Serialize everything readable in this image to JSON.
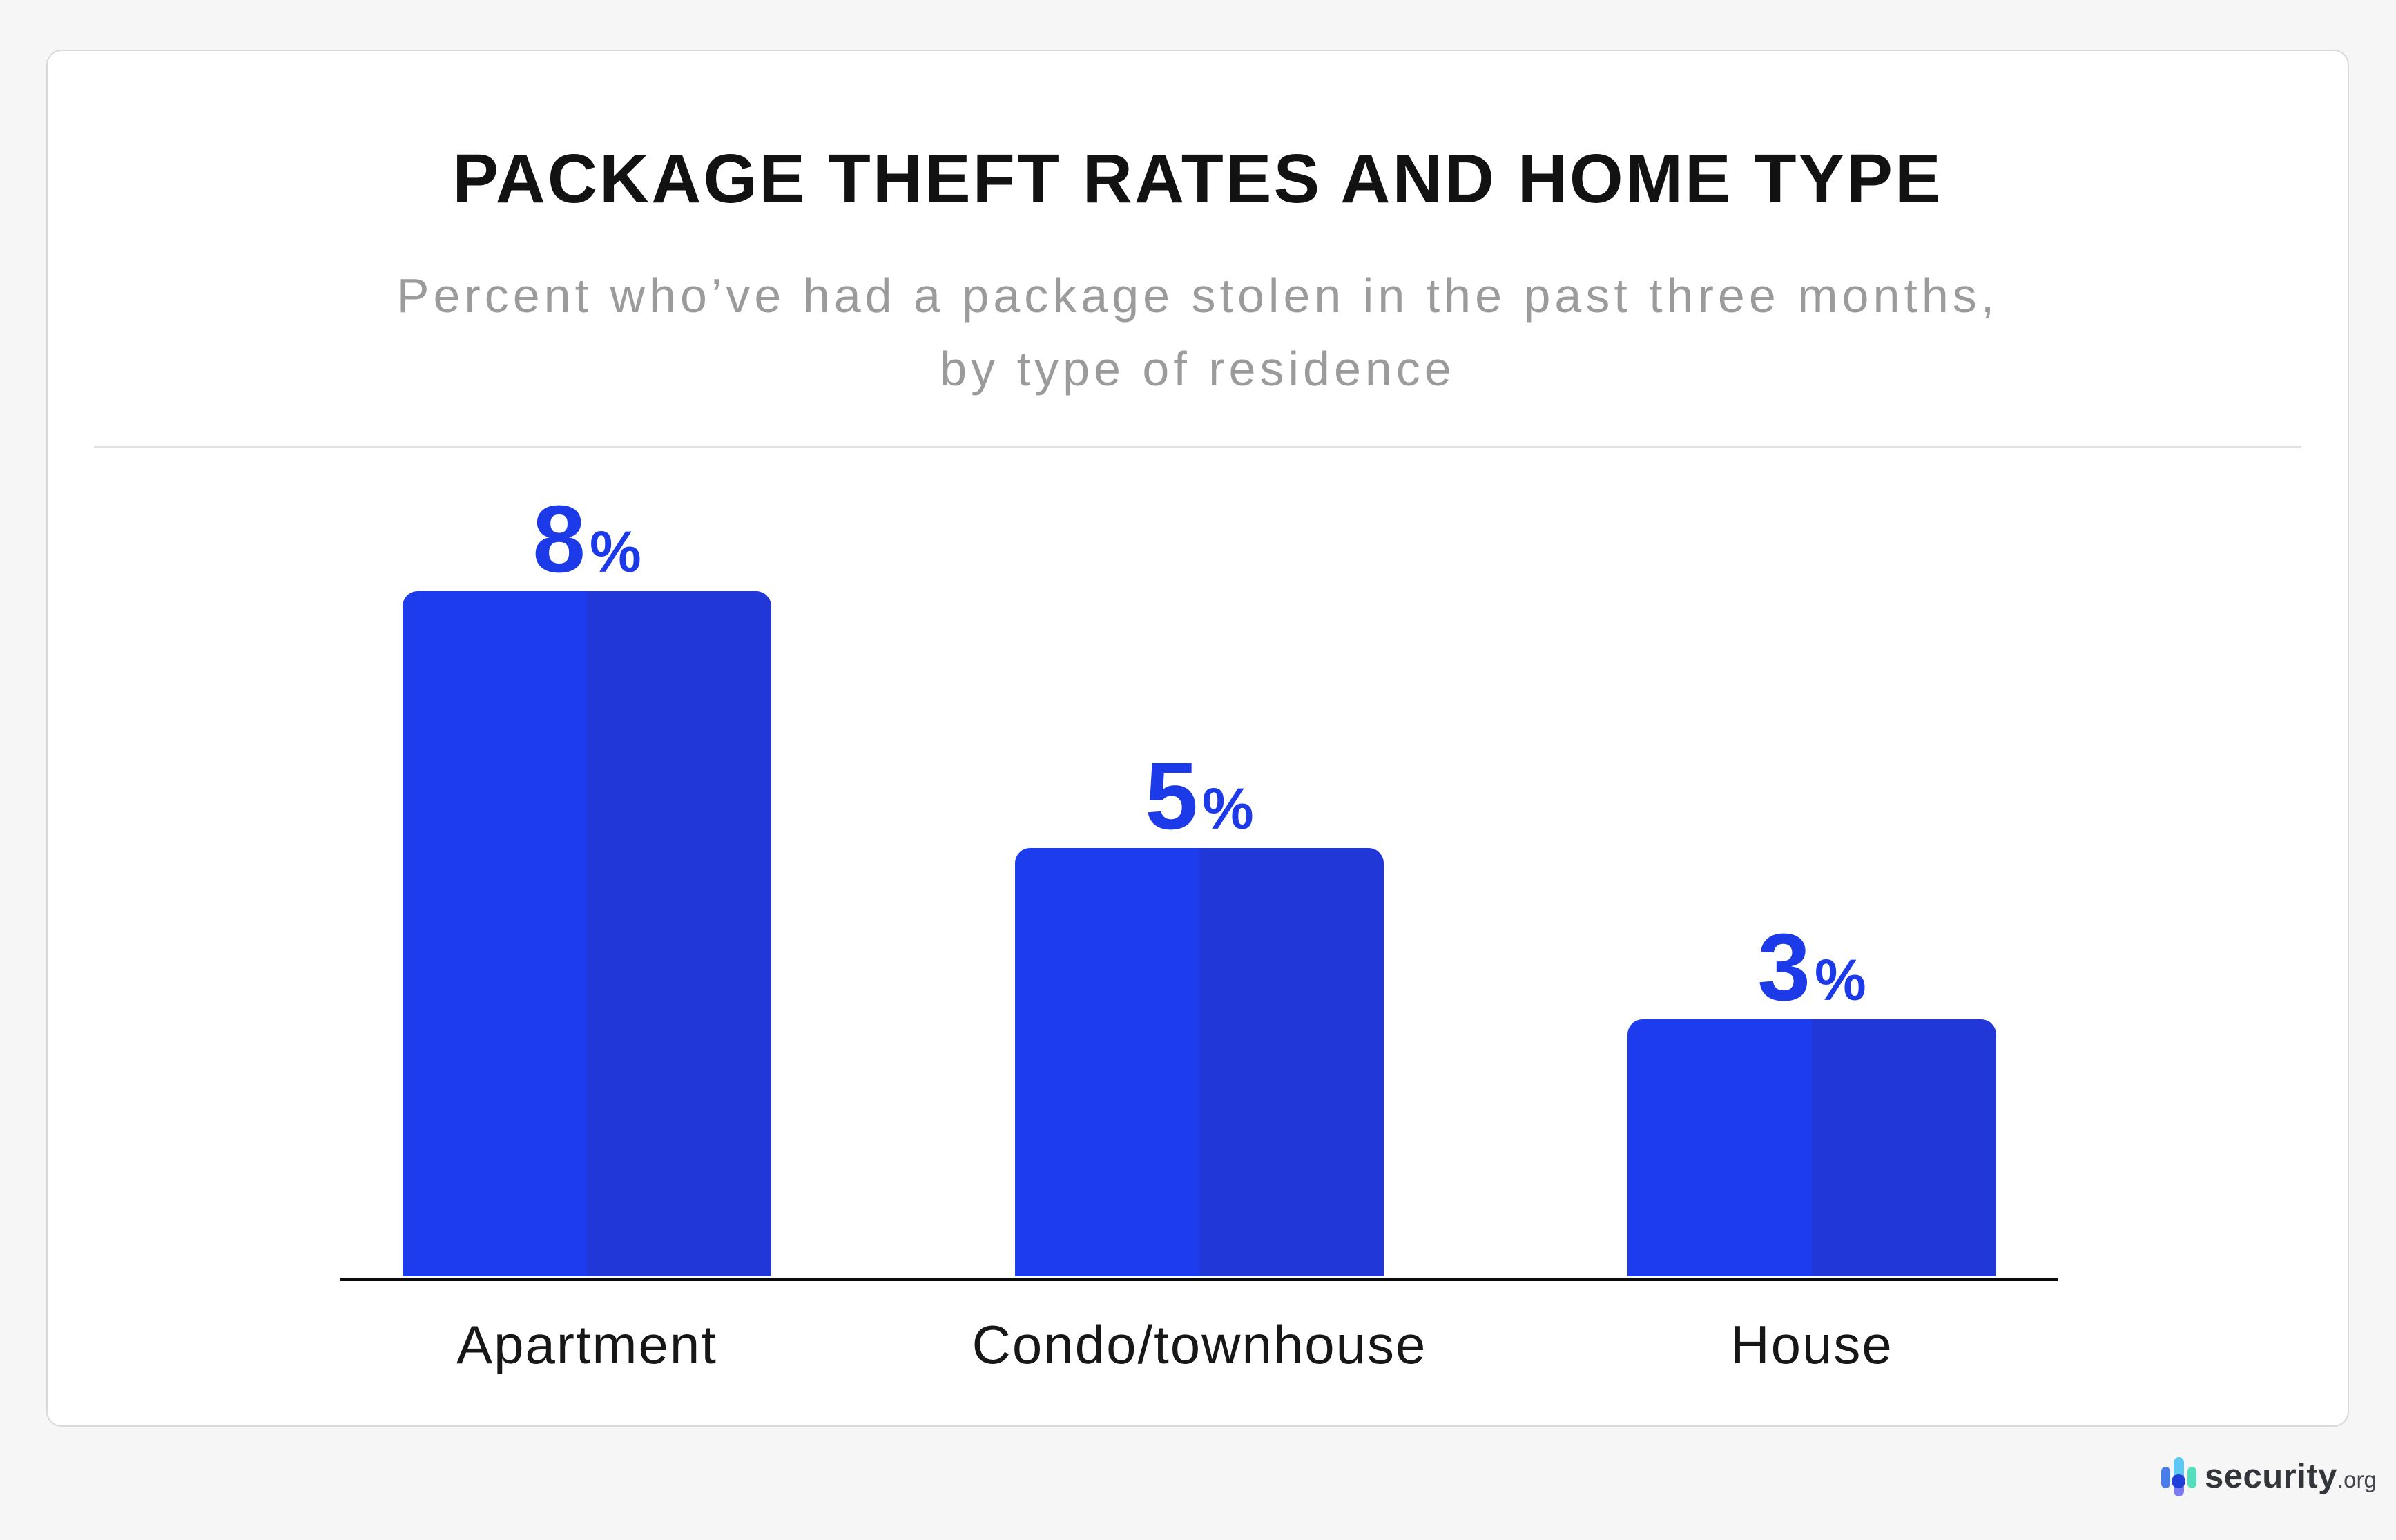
{
  "chart_data": {
    "type": "bar",
    "title": "PACKAGE THEFT RATES AND HOME TYPE",
    "subtitle": [
      "Percent who’ve had a package stolen in the past three months,",
      "by type of residence"
    ],
    "categories": [
      "Apartment",
      "Condo/townhouse",
      "House"
    ],
    "values": [
      8,
      5,
      3
    ],
    "value_labels": [
      "8",
      "5",
      "3"
    ],
    "value_suffix": "%",
    "xlabel": "",
    "ylabel": "",
    "ylim": [
      0,
      8
    ],
    "grid": false,
    "legend": false,
    "colors": {
      "bar_left_half": "#1c3cee",
      "bar_right_half": "#2137d8",
      "value_label": "#1d3ae8",
      "axis_line": "#0b0b0b",
      "title_text": "#121212",
      "subtitle_text": "#9b9b9b"
    }
  },
  "footer": {
    "brand": "security",
    "brand_suffix": ".org"
  }
}
